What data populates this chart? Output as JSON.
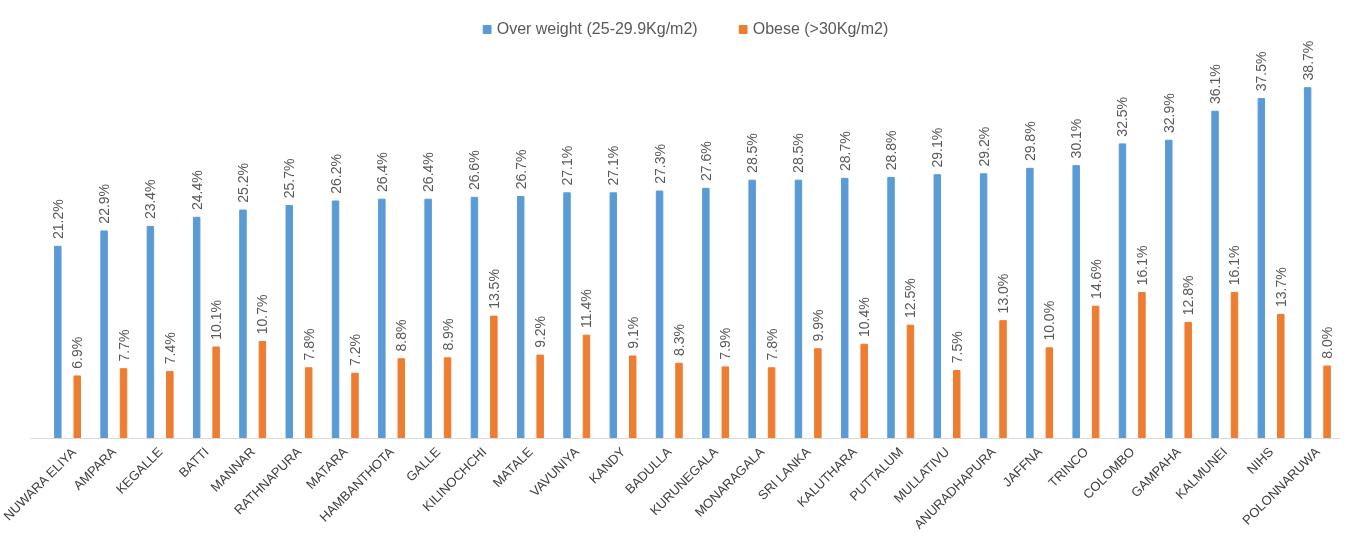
{
  "chart_data": {
    "type": "bar",
    "categories": [
      "NUWARA ELIYA",
      "AMPARA",
      "KEGALLE",
      "BATTI",
      "MANNAR",
      "RATHNAPURA",
      "MATARA",
      "HAMBANTHOTA",
      "GALLE",
      "KILINOCHCHI",
      "MATALE",
      "VAVUNIYA",
      "KANDY",
      "BADULLA",
      "KURUNEGALA",
      "MONARAGALA",
      "SRI LANKA",
      "KALUTHARA",
      "PUTTALUM",
      "MULLATIVU",
      "ANURADHAPURA",
      "JAFFNA",
      "TRINCO",
      "COLOMBO",
      "GAMPAHA",
      "KALMUNEI",
      "NIHS",
      "POLONNARUWA"
    ],
    "series": [
      {
        "name": "Over weight (25-29.9Kg/m2)",
        "color": "#5b9bd5",
        "values": [
          21.2,
          22.9,
          23.4,
          24.4,
          25.2,
          25.7,
          26.2,
          26.4,
          26.4,
          26.6,
          26.7,
          27.1,
          27.1,
          27.3,
          27.6,
          28.5,
          28.5,
          28.7,
          28.8,
          29.1,
          29.2,
          29.8,
          30.1,
          32.5,
          32.9,
          36.1,
          37.5,
          38.7
        ],
        "value_labels": [
          "21.2%",
          "22.9%",
          "23.4%",
          "24.4%",
          "25.2%",
          "25.7%",
          "26.2%",
          "26.4%",
          "26.4%",
          "26.6%",
          "26.7%",
          "27.1%",
          "27.1%",
          "27.3%",
          "27.6%",
          "28.5%",
          "28.5%",
          "28.7%",
          "28.8%",
          "29.1%",
          "29.2%",
          "29.8%",
          "30.1%",
          "32.5%",
          "32.9%",
          "36.1%",
          "37.5%",
          "38.7%"
        ]
      },
      {
        "name": "Obese (>30Kg/m2)",
        "color": "#ed7d31",
        "values": [
          6.9,
          7.7,
          7.4,
          10.1,
          10.7,
          7.8,
          7.2,
          8.8,
          8.9,
          13.5,
          9.2,
          11.4,
          9.1,
          8.3,
          7.9,
          7.8,
          9.9,
          10.4,
          12.5,
          7.5,
          13.0,
          10.0,
          14.6,
          16.1,
          12.8,
          16.1,
          13.7,
          8.0
        ],
        "value_labels": [
          "6.9%",
          "7.7%",
          "7.4%",
          "10.1%",
          "10.7%",
          "7.8%",
          "7.2%",
          "8.8%",
          "8.9%",
          "13.5%",
          "9.2%",
          "11.4%",
          "9.1%",
          "8.3%",
          "7.9%",
          "7.8%",
          "9.9%",
          "10.4%",
          "12.5%",
          "7.5%",
          "13.0%",
          "10.0%",
          "14.6%",
          "16.1%",
          "12.8%",
          "16.1%",
          "13.7%",
          "8.0%"
        ]
      }
    ],
    "tick_labels": "x",
    "grid": false,
    "legend": "top"
  }
}
